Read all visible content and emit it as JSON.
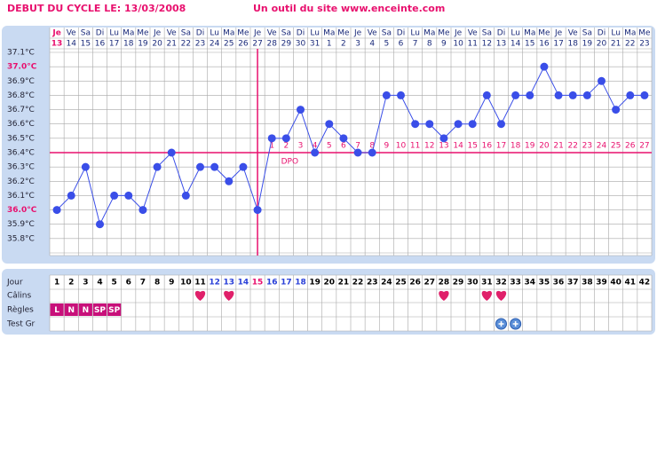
{
  "header": {
    "title": "DEBUT DU CYCLE LE: 13/03/2008",
    "site": "Un outil du site www.enceinte.com"
  },
  "chart_data": {
    "type": "line",
    "weekdays": [
      "Je",
      "Ve",
      "Sa",
      "Di",
      "Lu",
      "Ma",
      "Me",
      "Je",
      "Ve",
      "Sa",
      "Di",
      "Lu",
      "Ma",
      "Me",
      "Je",
      "Ve",
      "Sa",
      "Di",
      "Lu",
      "Ma",
      "Me",
      "Je",
      "Ve",
      "Sa",
      "Di",
      "Lu",
      "Ma",
      "Me",
      "Je",
      "Ve",
      "Sa",
      "Di",
      "Lu",
      "Ma",
      "Me",
      "Je",
      "Ve",
      "Sa",
      "Di",
      "Lu",
      "Ma",
      "Me"
    ],
    "dates": [
      13,
      14,
      15,
      16,
      17,
      18,
      19,
      20,
      21,
      22,
      23,
      24,
      25,
      26,
      27,
      28,
      29,
      30,
      31,
      1,
      2,
      3,
      4,
      5,
      6,
      7,
      8,
      9,
      10,
      11,
      12,
      13,
      14,
      15,
      16,
      17,
      18,
      19,
      20,
      21,
      22,
      23
    ],
    "series": [
      {
        "color": "#3a4ee8",
        "values": [
          36.0,
          36.1,
          36.3,
          35.9,
          36.1,
          36.1,
          36.0,
          36.3,
          36.4,
          36.1,
          36.3,
          36.3,
          36.2,
          36.3,
          36.0,
          36.5,
          36.5,
          36.7,
          36.4,
          36.6,
          36.5,
          36.4,
          36.4,
          36.8,
          36.8,
          36.6,
          36.6,
          36.5,
          36.6,
          36.6,
          36.8,
          36.6,
          36.8,
          36.8,
          37.0,
          36.8,
          36.8,
          36.8,
          36.9,
          36.7,
          36.8,
          36.8
        ]
      }
    ],
    "ylim": [
      35.7,
      37.1
    ],
    "yticks": [
      {
        "value": 37.1,
        "label": "37.1°C"
      },
      {
        "value": 37.0,
        "label": "37.0°C"
      },
      {
        "value": 36.9,
        "label": "36.9°C"
      },
      {
        "value": 36.8,
        "label": "36.8°C"
      },
      {
        "value": 36.7,
        "label": "36.7°C"
      },
      {
        "value": 36.6,
        "label": "36.6°C"
      },
      {
        "value": 36.5,
        "label": "36.5°C"
      },
      {
        "value": 36.4,
        "label": "36.4°C"
      },
      {
        "value": 36.3,
        "label": "36.3°C"
      },
      {
        "value": 36.2,
        "label": "36.2°C"
      },
      {
        "value": 36.1,
        "label": "36.1°C"
      },
      {
        "value": 36.0,
        "label": "36.0°C"
      },
      {
        "value": 35.9,
        "label": "35.9°C"
      },
      {
        "value": 35.8,
        "label": "35.8°C"
      }
    ],
    "grid": true,
    "coverline": 36.4,
    "ovulation_day": 15,
    "marker_color": "#e8106e",
    "dpo_labels": [
      1,
      2,
      3,
      4,
      5,
      6,
      7,
      8,
      9,
      10,
      11,
      12,
      13,
      14,
      15,
      16,
      17,
      18,
      19,
      20,
      21,
      22,
      23,
      24,
      25,
      26,
      27
    ],
    "dpo_title": "DPO"
  },
  "table": {
    "row_labels": [
      "Jour",
      "Câlins",
      "Règles",
      "Test Gr"
    ],
    "days": [
      1,
      2,
      3,
      4,
      5,
      6,
      7,
      8,
      9,
      10,
      11,
      12,
      13,
      14,
      15,
      16,
      17,
      18,
      19,
      20,
      21,
      22,
      23,
      24,
      25,
      26,
      27,
      28,
      29,
      30,
      31,
      32,
      33,
      34,
      35,
      36,
      37,
      38,
      39,
      40,
      41,
      42
    ],
    "blue_days": [
      12,
      13,
      14,
      16,
      17,
      18
    ],
    "pink_days": [
      15
    ],
    "calins": [
      11,
      13,
      28,
      31,
      32
    ],
    "regles": [
      {
        "day": 1,
        "label": "L"
      },
      {
        "day": 2,
        "label": "N"
      },
      {
        "day": 3,
        "label": "N"
      },
      {
        "day": 4,
        "label": "SP"
      },
      {
        "day": 5,
        "label": "SP"
      }
    ],
    "tests": [
      32,
      33
    ]
  }
}
